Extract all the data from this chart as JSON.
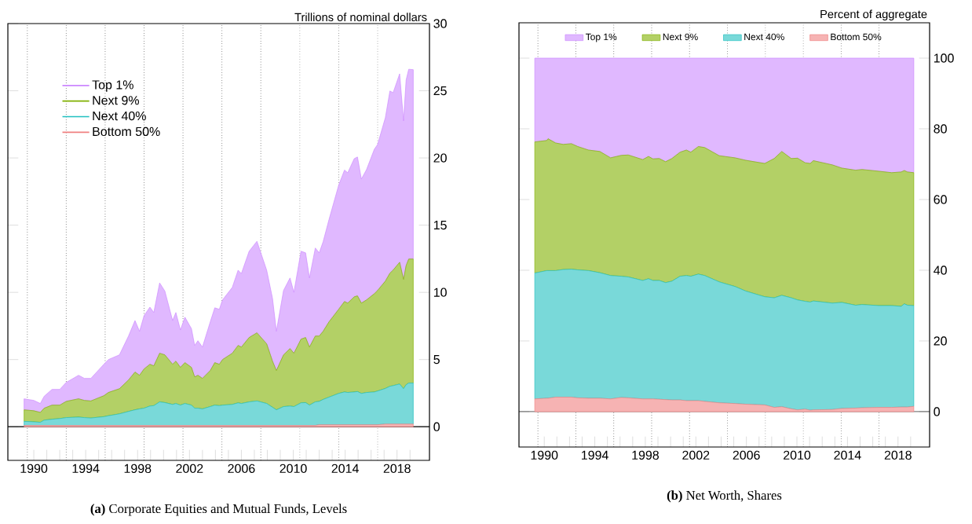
{
  "chart_data": [
    {
      "type": "area",
      "stacked": true,
      "title": "**(a)** Corporate Equities and Mutual Funds, Levels",
      "ylabel": "Trillions of nominal dollars",
      "legend": "top left",
      "x": [
        1989.25,
        1990.0,
        1990.5,
        1990.8,
        1991.4,
        1992.0,
        1992.5,
        1993.45,
        1993.9,
        1994.4,
        1995.4,
        1995.75,
        1996.6,
        1997.3,
        1997.8,
        1998.15,
        1998.5,
        1998.95,
        1999.25,
        1999.7,
        2000.1,
        2000.7,
        2000.95,
        2001.3,
        2001.65,
        2002.15,
        2002.4,
        2002.65,
        2003.0,
        2003.6,
        2003.95,
        2004.3,
        2004.55,
        2005.3,
        2005.75,
        2006.0,
        2006.6,
        2007.2,
        2007.95,
        2008.4,
        2008.7,
        2009.25,
        2009.75,
        2010.05,
        2010.6,
        2010.95,
        2011.25,
        2011.7,
        2012.0,
        2012.3,
        2012.75,
        2013.5,
        2013.95,
        2014.2,
        2014.7,
        2014.95,
        2015.25,
        2015.65,
        2016.25,
        2016.5,
        2017.1,
        2017.45,
        2017.7,
        2018.2,
        2018.5,
        2018.7,
        2018.9,
        2019.25
      ],
      "series": [
        {
          "name": "Bottom 50%",
          "color": "#f08080",
          "values": [
            0.1,
            0.1,
            0.1,
            0.1,
            0.1,
            0.1,
            0.1,
            0.1,
            0.1,
            0.1,
            0.1,
            0.1,
            0.1,
            0.1,
            0.1,
            0.1,
            0.1,
            0.1,
            0.1,
            0.1,
            0.1,
            0.1,
            0.1,
            0.1,
            0.1,
            0.1,
            0.1,
            0.1,
            0.1,
            0.1,
            0.1,
            0.1,
            0.1,
            0.1,
            0.1,
            0.1,
            0.1,
            0.1,
            0.1,
            0.1,
            0.1,
            0.1,
            0.1,
            0.1,
            0.1,
            0.1,
            0.1,
            0.1,
            0.15,
            0.15,
            0.15,
            0.15,
            0.15,
            0.15,
            0.15,
            0.15,
            0.15,
            0.15,
            0.15,
            0.15,
            0.2,
            0.2,
            0.2,
            0.2,
            0.2,
            0.2,
            0.2,
            0.2
          ]
        },
        {
          "name": "Next 40%",
          "color": "#20c0c0",
          "values": [
            0.3,
            0.27,
            0.23,
            0.39,
            0.46,
            0.51,
            0.58,
            0.62,
            0.58,
            0.55,
            0.65,
            0.72,
            0.86,
            1.04,
            1.16,
            1.23,
            1.28,
            1.44,
            1.47,
            1.75,
            1.7,
            1.56,
            1.63,
            1.51,
            1.63,
            1.51,
            1.28,
            1.28,
            1.23,
            1.4,
            1.51,
            1.47,
            1.51,
            1.56,
            1.68,
            1.63,
            1.75,
            1.82,
            1.63,
            1.35,
            1.16,
            1.4,
            1.44,
            1.4,
            1.68,
            1.7,
            1.51,
            1.75,
            1.74,
            1.88,
            2.05,
            2.33,
            2.44,
            2.4,
            2.44,
            2.47,
            2.33,
            2.4,
            2.44,
            2.51,
            2.65,
            2.81,
            2.86,
            2.98,
            2.63,
            2.93,
            3.05,
            3.05
          ]
        },
        {
          "name": "Next 9%",
          "color": "#80b000",
          "values": [
            0.86,
            0.82,
            0.74,
            0.89,
            1.05,
            1.0,
            1.21,
            1.36,
            1.28,
            1.27,
            1.56,
            1.73,
            1.87,
            2.34,
            2.81,
            2.5,
            2.92,
            3.11,
            2.96,
            3.62,
            3.55,
            2.99,
            3.15,
            2.81,
            3.04,
            2.81,
            2.33,
            2.45,
            2.27,
            2.68,
            3.16,
            3.08,
            3.39,
            3.81,
            4.27,
            4.2,
            4.79,
            5.07,
            4.44,
            3.43,
            2.92,
            3.85,
            4.28,
            3.97,
            4.74,
            4.84,
            4.32,
            4.9,
            4.86,
            5.07,
            5.6,
            6.26,
            6.73,
            6.65,
            7.08,
            7.12,
            6.72,
            6.89,
            7.31,
            7.48,
            7.99,
            8.42,
            8.6,
            9.06,
            8.13,
            8.87,
            9.23,
            9.23
          ]
        },
        {
          "name": "Top 1%",
          "color": "#cc88ff",
          "values": [
            0.82,
            0.77,
            0.66,
            0.89,
            1.17,
            1.17,
            1.41,
            1.75,
            1.64,
            1.68,
            2.34,
            2.45,
            2.52,
            3.27,
            3.83,
            3.27,
            3.97,
            4.25,
            3.97,
            5.23,
            4.75,
            3.25,
            3.62,
            2.78,
            3.38,
            2.88,
            2.34,
            2.57,
            2.33,
            3.62,
            4.08,
            4.09,
            4.44,
            4.9,
            5.6,
            5.47,
            6.42,
            6.81,
            5.48,
            4.67,
            2.92,
            4.79,
            5.25,
            4.53,
            6.54,
            6.3,
            5.14,
            6.55,
            6.19,
            6.66,
            7.6,
            9.23,
            9.78,
            9.7,
            10.28,
            10.33,
            9.23,
            9.7,
            10.75,
            10.86,
            12.16,
            13.55,
            13.2,
            14.02,
            11.8,
            13.8,
            14.12,
            14.09
          ]
        }
      ],
      "xlim": [
        1988,
        2020.5
      ],
      "ylim": [
        -2.5,
        30
      ],
      "xticks": [
        1990,
        {
          "value": 1991,
          "label": null
        },
        {
          "value": 1992,
          "label": null
        },
        {
          "value": 1993,
          "label": null
        },
        1994,
        {
          "value": 1995,
          "label": null
        },
        {
          "value": 1996,
          "label": null
        },
        {
          "value": 1997,
          "label": null
        },
        1998,
        {
          "value": 1999,
          "label": null
        },
        {
          "value": 2000,
          "label": null
        },
        {
          "value": 2001,
          "label": null
        },
        2002,
        {
          "value": 2003,
          "label": null
        },
        {
          "value": 2004,
          "label": null
        },
        {
          "value": 2005,
          "label": null
        },
        2006,
        {
          "value": 2007,
          "label": null
        },
        {
          "value": 2008,
          "label": null
        },
        {
          "value": 2009,
          "label": null
        },
        2010,
        {
          "value": 2011,
          "label": null
        },
        {
          "value": 2012,
          "label": null
        },
        {
          "value": 2013,
          "label": null
        },
        2014,
        {
          "value": 2015,
          "label": null
        },
        {
          "value": 2016,
          "label": null
        },
        {
          "value": 2017,
          "label": null
        },
        2018,
        {
          "value": 2019,
          "label": null
        }
      ],
      "yticks": [
        0,
        5,
        10,
        15,
        20,
        25,
        30
      ],
      "ref_lines": [
        {
          "axis": "y",
          "value": 0,
          "line_style": "solid"
        },
        {
          "axis": "x",
          "value": 1989.5,
          "line_style": "dotted"
        },
        {
          "axis": "x",
          "value": 1992.5,
          "line_style": "dotted"
        },
        {
          "axis": "x",
          "value": 1995.5,
          "line_style": "dotted"
        },
        {
          "axis": "x",
          "value": 1998.5,
          "line_style": "dotted"
        },
        {
          "axis": "x",
          "value": 2001.5,
          "line_style": "dotted"
        },
        {
          "axis": "x",
          "value": 2004.5,
          "line_style": "dotted"
        },
        {
          "axis": "x",
          "value": 2007.5,
          "line_style": "dotted"
        },
        {
          "axis": "x",
          "value": 2010.5,
          "line_style": "dotted"
        },
        {
          "axis": "x",
          "value": 2013.5,
          "line_style": "dotted"
        },
        {
          "axis": "x",
          "value": 2016.5,
          "line_style": "dotted"
        }
      ]
    },
    {
      "type": "area",
      "stacked": true,
      "title": "**(b)** Net Worth, Shares",
      "ylabel": "Percent of aggregate",
      "legend": "top",
      "x": [
        1989.25,
        1990.2,
        1990.3,
        1990.9,
        1991.5,
        1992.15,
        1992.65,
        1993.5,
        1994.4,
        1995.25,
        1996.1,
        1996.65,
        1997.8,
        1998.25,
        1998.6,
        1999.1,
        1999.6,
        2000.1,
        2000.75,
        2001.25,
        2001.6,
        2002.2,
        2002.7,
        2003.85,
        2005.1,
        2005.95,
        2007.45,
        2008.2,
        2008.8,
        2009.55,
        2010.05,
        2010.65,
        2011.05,
        2011.3,
        2012.8,
        2013.55,
        2014.65,
        2015.15,
        2016.5,
        2017.5,
        2018.25,
        2018.5,
        2018.75,
        2019.25
      ],
      "series": [
        {
          "name": "Bottom 50%",
          "color": "#f08080",
          "values": [
            3.6,
            3.8,
            3.8,
            4.1,
            4.1,
            4.1,
            3.9,
            3.8,
            3.8,
            3.6,
            4.0,
            3.9,
            3.6,
            3.6,
            3.6,
            3.5,
            3.4,
            3.3,
            3.3,
            3.1,
            3.1,
            3.1,
            2.9,
            2.5,
            2.3,
            2.1,
            1.9,
            1.2,
            1.4,
            0.8,
            0.5,
            0.7,
            0.4,
            0.5,
            0.6,
            0.9,
            1.0,
            1.1,
            1.2,
            1.2,
            1.3,
            1.3,
            1.3,
            1.5
          ]
        },
        {
          "name": "Next 40%",
          "color": "#20c0c0",
          "values": [
            35.6,
            36.1,
            36.1,
            35.8,
            36.1,
            36.2,
            36.2,
            36.1,
            35.5,
            34.9,
            34.3,
            34.2,
            33.5,
            34.0,
            33.5,
            33.6,
            33.1,
            33.6,
            35.0,
            35.4,
            35.2,
            35.8,
            35.6,
            34.2,
            33.1,
            32.0,
            30.6,
            31.0,
            31.5,
            31.4,
            31.1,
            30.5,
            30.6,
            30.8,
            30.1,
            30.0,
            29.1,
            29.2,
            28.8,
            28.8,
            28.5,
            29.2,
            28.8,
            28.5
          ]
        },
        {
          "name": "Next 9%",
          "color": "#80b000",
          "values": [
            37.1,
            36.8,
            37.3,
            36.1,
            35.4,
            35.5,
            34.9,
            34.1,
            34.3,
            33.3,
            34.2,
            34.5,
            34.2,
            34.6,
            34.4,
            34.5,
            34.2,
            34.7,
            35.1,
            35.5,
            35.1,
            36.1,
            36.2,
            35.7,
            36.4,
            37.0,
            37.7,
            39.4,
            40.7,
            39.4,
            40.1,
            39.2,
            39.2,
            39.7,
            39.1,
            38.0,
            38.2,
            38.2,
            38.0,
            37.6,
            38.0,
            37.7,
            37.7,
            37.6
          ]
        },
        {
          "name": "Top 1%",
          "color": "#cc88ff",
          "values": [
            23.7,
            23.3,
            22.8,
            24.0,
            24.4,
            24.2,
            25.0,
            26.0,
            26.4,
            28.2,
            27.5,
            27.4,
            28.7,
            27.8,
            28.5,
            28.4,
            29.3,
            28.4,
            26.6,
            26.0,
            26.6,
            25.0,
            25.3,
            27.6,
            28.2,
            28.9,
            29.8,
            28.4,
            26.4,
            28.4,
            28.3,
            29.6,
            29.8,
            29.0,
            30.2,
            31.1,
            31.7,
            31.5,
            32.0,
            32.4,
            32.2,
            31.8,
            32.2,
            32.4
          ]
        }
      ],
      "xlim": [
        1988,
        2020.5
      ],
      "ylim": [
        -10,
        110
      ],
      "xticks": [
        1990,
        {
          "value": 1991,
          "label": null
        },
        {
          "value": 1992,
          "label": null
        },
        {
          "value": 1993,
          "label": null
        },
        1994,
        {
          "value": 1995,
          "label": null
        },
        {
          "value": 1996,
          "label": null
        },
        {
          "value": 1997,
          "label": null
        },
        1998,
        {
          "value": 1999,
          "label": null
        },
        {
          "value": 2000,
          "label": null
        },
        {
          "value": 2001,
          "label": null
        },
        2002,
        {
          "value": 2003,
          "label": null
        },
        {
          "value": 2004,
          "label": null
        },
        {
          "value": 2005,
          "label": null
        },
        2006,
        {
          "value": 2007,
          "label": null
        },
        {
          "value": 2008,
          "label": null
        },
        {
          "value": 2009,
          "label": null
        },
        2010,
        {
          "value": 2011,
          "label": null
        },
        {
          "value": 2012,
          "label": null
        },
        {
          "value": 2013,
          "label": null
        },
        2014,
        {
          "value": 2015,
          "label": null
        },
        {
          "value": 2016,
          "label": null
        },
        {
          "value": 2017,
          "label": null
        },
        2018,
        {
          "value": 2019,
          "label": null
        }
      ],
      "yticks": [
        0,
        20,
        40,
        60,
        80,
        100
      ],
      "ref_lines": [
        {
          "axis": "y",
          "value": 0,
          "line_style": "solid"
        },
        {
          "axis": "x",
          "value": 1989.5,
          "line_style": "dotted"
        },
        {
          "axis": "x",
          "value": 1992.5,
          "line_style": "dotted"
        },
        {
          "axis": "x",
          "value": 1995.5,
          "line_style": "dotted"
        },
        {
          "axis": "x",
          "value": 1998.5,
          "line_style": "dotted"
        },
        {
          "axis": "x",
          "value": 2001.5,
          "line_style": "dotted"
        },
        {
          "axis": "x",
          "value": 2004.5,
          "line_style": "dotted"
        },
        {
          "axis": "x",
          "value": 2007.5,
          "line_style": "dotted"
        },
        {
          "axis": "x",
          "value": 2010.5,
          "line_style": "dotted"
        },
        {
          "axis": "x",
          "value": 2013.5,
          "line_style": "dotted"
        },
        {
          "axis": "x",
          "value": 2016.5,
          "line_style": "dotted"
        }
      ]
    }
  ]
}
